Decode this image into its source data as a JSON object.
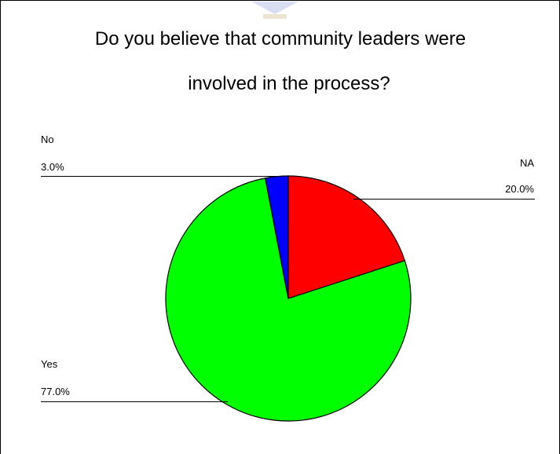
{
  "chart_data": {
    "type": "pie",
    "title_lines": [
      "Do you believe that community leaders were",
      "involved in the process?"
    ],
    "slices": [
      {
        "label": "NA",
        "value": 20.0,
        "value_text": "20.0%",
        "color": "#ff0000"
      },
      {
        "label": "Yes",
        "value": 77.0,
        "value_text": "77.0%",
        "color": "#00ff00"
      },
      {
        "label": "No",
        "value": 3.0,
        "value_text": "3.0%",
        "color": "#0000ff"
      }
    ],
    "start_angle_deg": 0,
    "direction": "clockwise",
    "edge_color": "#000000"
  }
}
